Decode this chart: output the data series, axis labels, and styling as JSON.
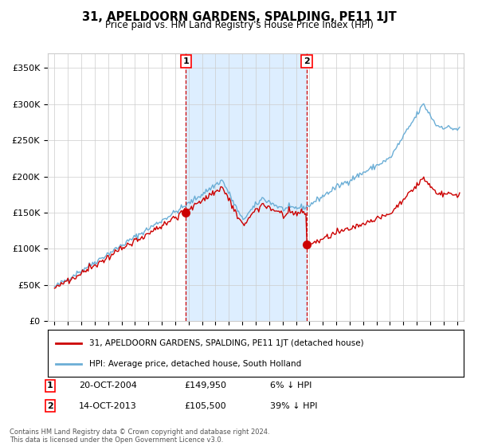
{
  "title": "31, APELDOORN GARDENS, SPALDING, PE11 1JT",
  "subtitle": "Price paid vs. HM Land Registry's House Price Index (HPI)",
  "hpi_label": "HPI: Average price, detached house, South Holland",
  "price_label": "31, APELDOORN GARDENS, SPALDING, PE11 1JT (detached house)",
  "sale1_date": "20-OCT-2004",
  "sale1_price": 149950,
  "sale1_pct": "6% ↓ HPI",
  "sale1_x": 2004.8,
  "sale2_date": "14-OCT-2013",
  "sale2_price": 105500,
  "sale2_pct": "39% ↓ HPI",
  "sale2_x": 2013.8,
  "hpi_color": "#6baed6",
  "price_color": "#cc0000",
  "shade_color": "#ddeeff",
  "dot_color": "#cc0000",
  "vline_color": "#cc0000",
  "grid_color": "#cccccc",
  "background_color": "#ffffff",
  "footnote": "Contains HM Land Registry data © Crown copyright and database right 2024.\nThis data is licensed under the Open Government Licence v3.0.",
  "ylim": [
    0,
    370000
  ],
  "xlim": [
    1994.5,
    2025.5
  ]
}
